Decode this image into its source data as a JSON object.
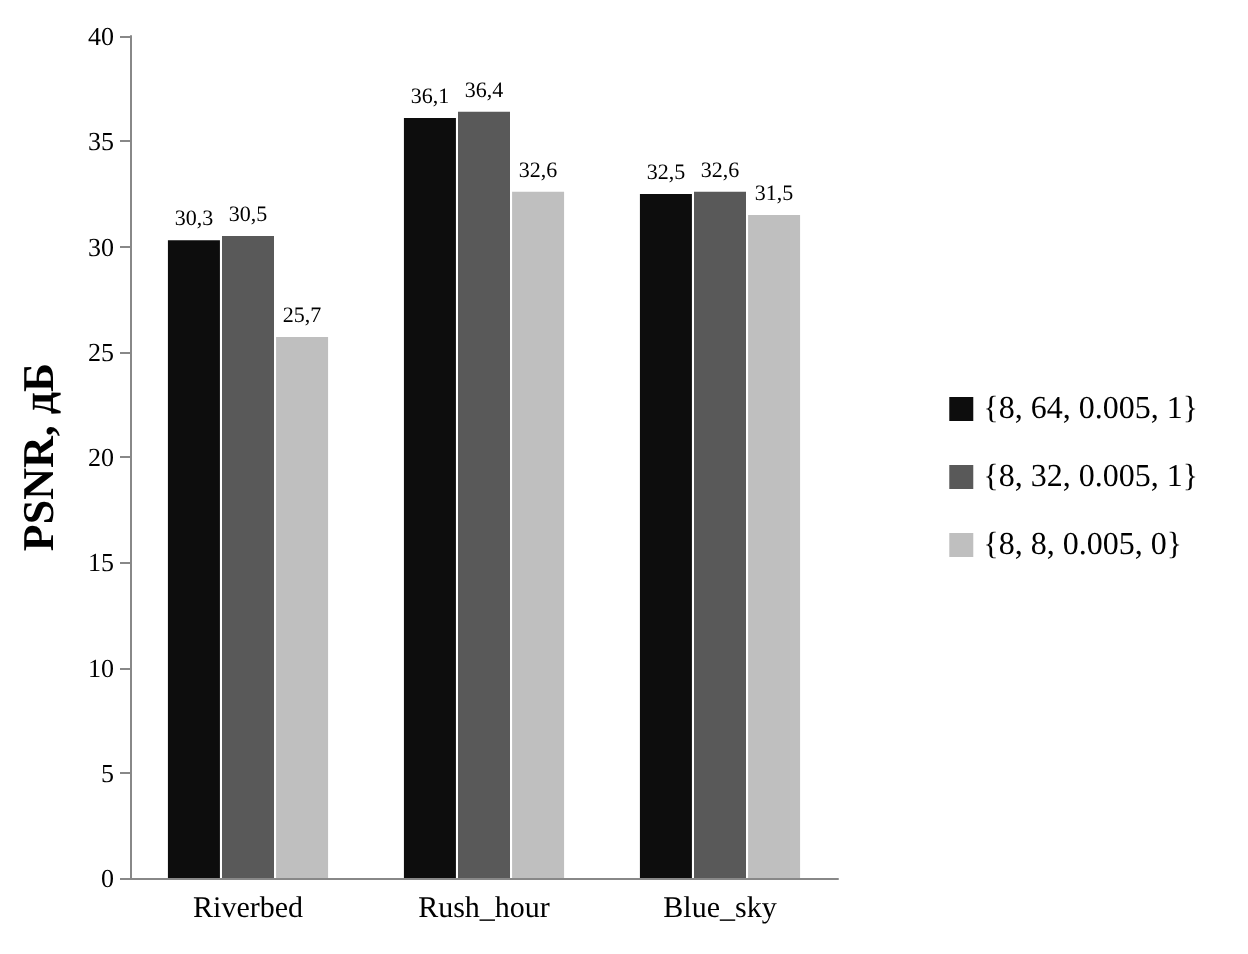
{
  "chart_data": {
    "type": "bar",
    "ylabel": "PSNR, дБ",
    "categories": [
      "Riverbed",
      "Rush_hour",
      "Blue_sky"
    ],
    "series": [
      {
        "name": "{8, 64, 0.005, 1}",
        "color": "#0d0d0d",
        "values": [
          30.3,
          36.1,
          32.5
        ],
        "value_labels": [
          "30,3",
          "36,1",
          "32,5"
        ]
      },
      {
        "name": "{8, 32, 0.005, 1}",
        "color": "#595959",
        "values": [
          30.5,
          36.4,
          32.6
        ],
        "value_labels": [
          "30,5",
          "36,4",
          "32,6"
        ]
      },
      {
        "name": "{8, 8, 0.005, 0}",
        "color": "#bfbfbf",
        "values": [
          25.7,
          32.6,
          31.5
        ],
        "value_labels": [
          "25,7",
          "32,6",
          "31,5"
        ]
      }
    ],
    "ylim": [
      0,
      40
    ],
    "yticks": [
      0,
      5,
      10,
      15,
      20,
      25,
      30,
      35,
      40
    ],
    "grid": false,
    "legend": "right"
  }
}
